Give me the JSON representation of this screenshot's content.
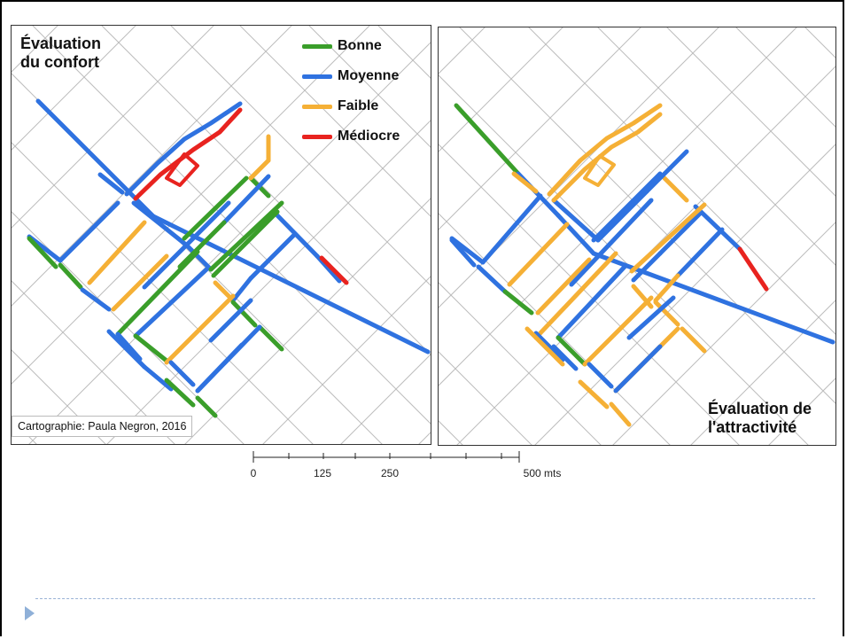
{
  "left_map": {
    "title_line1": "Évaluation",
    "title_line2": "du confort",
    "credit": "Cartographie: Paula Negron, 2016"
  },
  "right_map": {
    "title_line1": "Évaluation de",
    "title_line2": "l'attractivité"
  },
  "legend": [
    {
      "label": "Bonne",
      "color": "#3a9e2a"
    },
    {
      "label": "Moyenne",
      "color": "#2f72e0"
    },
    {
      "label": "Faible",
      "color": "#f5b036"
    },
    {
      "label": "Médiocre",
      "color": "#e8231f"
    }
  ],
  "scale_bar": {
    "ticks": [
      "0",
      "125",
      "250",
      "500 mts"
    ]
  },
  "colors": {
    "background_street": "#bdbdbd",
    "bullet": "#8fb0d8"
  }
}
